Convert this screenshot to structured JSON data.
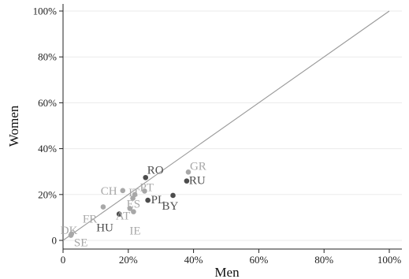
{
  "chart_data": {
    "type": "scatter",
    "xlabel": "Men",
    "ylabel": "Women",
    "xlim": [
      0,
      100
    ],
    "ylim": [
      0,
      100
    ],
    "x_ticks": [
      "0",
      "20%",
      "40%",
      "60%",
      "80%",
      "100%"
    ],
    "y_ticks": [
      "0",
      "20%",
      "40%",
      "60%",
      "80%",
      "100%"
    ],
    "grid": true,
    "reference_line": {
      "from": [
        0,
        0
      ],
      "to": [
        100,
        100
      ]
    },
    "colors": {
      "dark": "#4d4d4d",
      "light": "#a8a8a8",
      "line": "#999999"
    },
    "points": [
      {
        "label": "RO",
        "x": 25.3,
        "y": 27.4,
        "shade": "dark"
      },
      {
        "label": "GR",
        "x": 38.4,
        "y": 29.8,
        "shade": "light"
      },
      {
        "label": "RU",
        "x": 37.9,
        "y": 25.9,
        "shade": "dark"
      },
      {
        "label": "BY",
        "x": 33.7,
        "y": 19.6,
        "shade": "dark"
      },
      {
        "label": "PL",
        "x": 26.0,
        "y": 17.5,
        "shade": "dark"
      },
      {
        "label": "CH",
        "x": 18.3,
        "y": 21.7,
        "shade": "light"
      },
      {
        "label": "IT",
        "x": 22.0,
        "y": 20.0,
        "shade": "light"
      },
      {
        "label": "PT",
        "x": 25.0,
        "y": 21.5,
        "shade": "light"
      },
      {
        "label": "ES",
        "x": 21.4,
        "y": 18.4,
        "shade": "light"
      },
      {
        "label": "AT",
        "x": 20.5,
        "y": 13.9,
        "shade": "light"
      },
      {
        "label": "IE",
        "x": 21.6,
        "y": 12.5,
        "shade": "light"
      },
      {
        "label": "FR",
        "x": 12.3,
        "y": 14.6,
        "shade": "light"
      },
      {
        "label": "HU",
        "x": 17.2,
        "y": 11.5,
        "shade": "dark"
      },
      {
        "label": "DK",
        "x": 2.6,
        "y": 2.8,
        "shade": "light"
      },
      {
        "label": "SE",
        "x": 2.4,
        "y": 2.2,
        "shade": "light"
      }
    ]
  }
}
